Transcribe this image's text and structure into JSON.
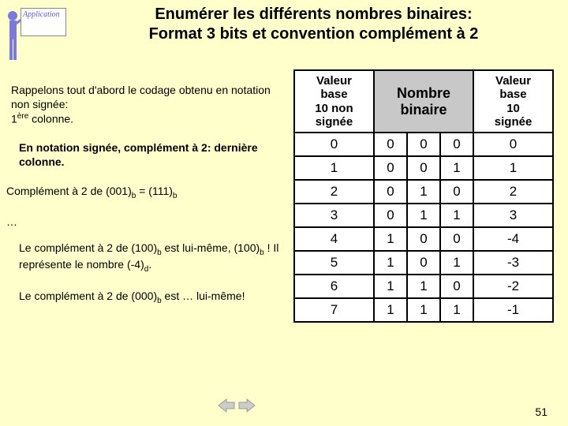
{
  "icon": {
    "label": "Application"
  },
  "title_line1": "Enumérer les différents nombres binaires:",
  "title_line2": "Format 3 bits et convention complément à 2",
  "paragraphs": {
    "p1a": "Rappelons tout d'abord le codage obtenu en notation non signée:",
    "p1b_pre": "1",
    "p1b_sup": "ère",
    "p1b_post": " colonne.",
    "p2": "En notation signée, complément à 2: dernière colonne.",
    "p3_pre": "Complément à 2 de (001)",
    "p3_mid": " = (111)",
    "dots": "…",
    "p4_pre": "Le complément à 2 de (100)",
    "p4_mid": " est lui-même, (100)",
    "p4_post": " ! Il représente le nombre (-4)",
    "p4_end": ".",
    "p5_pre": "Le complément à 2 de (000)",
    "p5_post": " est … lui-même!"
  },
  "sub_b": "b",
  "sub_d": "d",
  "table": {
    "headers": {
      "unsigned_l1": "Valeur",
      "unsigned_l2": "base",
      "unsigned_l3": "10 ",
      "unsigned_l3b": "non",
      "unsigned_l4": "signée",
      "binary_l1": "Nombre",
      "binary_l2": "binaire",
      "signed_l1": "Valeur",
      "signed_l2": "base",
      "signed_l3": "10",
      "signed_l4": "signée"
    },
    "rows": [
      {
        "u": "0",
        "b": [
          "0",
          "0",
          "0"
        ],
        "s": "0"
      },
      {
        "u": "1",
        "b": [
          "0",
          "0",
          "1"
        ],
        "s": "1"
      },
      {
        "u": "2",
        "b": [
          "0",
          "1",
          "0"
        ],
        "s": "2"
      },
      {
        "u": "3",
        "b": [
          "0",
          "1",
          "1"
        ],
        "s": "3"
      },
      {
        "u": "4",
        "b": [
          "1",
          "0",
          "0"
        ],
        "s": "-4"
      },
      {
        "u": "5",
        "b": [
          "1",
          "0",
          "1"
        ],
        "s": "-3"
      },
      {
        "u": "6",
        "b": [
          "1",
          "1",
          "0"
        ],
        "s": "-2"
      },
      {
        "u": "7",
        "b": [
          "1",
          "1",
          "1"
        ],
        "s": "-1"
      }
    ]
  },
  "page_number": "51",
  "colors": {
    "bg": "#ffffcc",
    "header_grey": "#c8c8c8",
    "border": "#000000"
  }
}
